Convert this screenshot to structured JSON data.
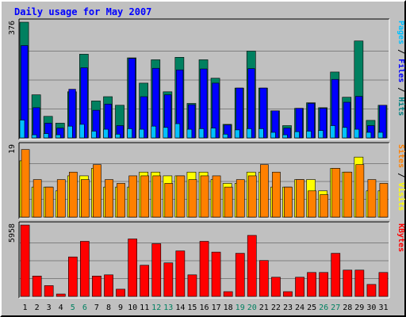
{
  "title": "Daily usage for May 2007",
  "chart_data": [
    {
      "type": "bar",
      "name": "hits-files-pages",
      "label_parts": [
        {
          "text": "Pages",
          "color": "#00c0ff"
        },
        {
          "text": " / ",
          "color": "#000000"
        },
        {
          "text": "Files",
          "color": "#0000ff"
        },
        {
          "text": " / ",
          "color": "#000000"
        },
        {
          "text": "Hits",
          "color": "#008080"
        }
      ],
      "max_label": "376",
      "ymax": 376,
      "categories": [
        1,
        2,
        3,
        4,
        5,
        6,
        7,
        8,
        9,
        10,
        11,
        12,
        13,
        14,
        15,
        16,
        17,
        18,
        19,
        20,
        21,
        22,
        23,
        24,
        25,
        26,
        27,
        28,
        29,
        30,
        31
      ],
      "series": [
        {
          "name": "Hits",
          "color": "#008060",
          "values": [
            376,
            140,
            70,
            48,
            150,
            272,
            120,
            134,
            106,
            260,
            178,
            254,
            150,
            262,
            112,
            254,
            194,
            44,
            162,
            282,
            162,
            88,
            40,
            96,
            114,
            98,
            214,
            132,
            315,
            57,
            106
          ]
        },
        {
          "name": "Files",
          "color": "#0000ff",
          "values": [
            300,
            98,
            48,
            32,
            158,
            228,
            90,
            110,
            40,
            258,
            134,
            226,
            140,
            221,
            108,
            224,
            178,
            42,
            162,
            225,
            162,
            88,
            32,
            96,
            112,
            96,
            190,
            116,
            135,
            40,
            106
          ]
        },
        {
          "name": "Pages",
          "color": "#00c0ff",
          "values": [
            58,
            10,
            14,
            10,
            38,
            44,
            22,
            28,
            12,
            30,
            28,
            38,
            34,
            46,
            28,
            30,
            32,
            12,
            26,
            30,
            30,
            18,
            10,
            20,
            22,
            24,
            40,
            34,
            28,
            18,
            18
          ]
        }
      ]
    },
    {
      "type": "bar",
      "name": "visits-sites",
      "label_parts": [
        {
          "text": "Sites",
          "color": "#ff8000"
        },
        {
          "text": " / ",
          "color": "#000000"
        },
        {
          "text": "Visits",
          "color": "#ffff00"
        }
      ],
      "max_label": "19",
      "ymax": 19,
      "categories": [
        1,
        2,
        3,
        4,
        5,
        6,
        7,
        8,
        9,
        10,
        11,
        12,
        13,
        14,
        15,
        16,
        17,
        18,
        19,
        20,
        21,
        22,
        23,
        24,
        25,
        26,
        27,
        28,
        29,
        30,
        31
      ],
      "series": [
        {
          "name": "Visits",
          "color": "#ffff00",
          "values": [
            15,
            8,
            8,
            7,
            11,
            11,
            13,
            8,
            8,
            8,
            12,
            12,
            11,
            11,
            12,
            12,
            10,
            9,
            9,
            12,
            12,
            8,
            8,
            10,
            10,
            7,
            13,
            12,
            16,
            7,
            7
          ]
        },
        {
          "name": "Sites",
          "color": "#ff8000",
          "values": [
            18,
            10,
            8,
            10,
            12,
            10,
            14,
            10,
            9,
            11,
            11,
            11,
            9,
            11,
            10,
            11,
            11,
            8,
            10,
            11,
            14,
            12,
            8,
            10,
            7,
            6,
            13,
            12,
            14,
            10,
            9
          ]
        }
      ]
    },
    {
      "type": "bar",
      "name": "kbytes",
      "label_parts": [
        {
          "text": "KBytes",
          "color": "#ff0000"
        }
      ],
      "max_label": "5958",
      "ymax": 5958,
      "categories": [
        1,
        2,
        3,
        4,
        5,
        6,
        7,
        8,
        9,
        10,
        11,
        12,
        13,
        14,
        15,
        16,
        17,
        18,
        19,
        20,
        21,
        22,
        23,
        24,
        25,
        26,
        27,
        28,
        29,
        30,
        31
      ],
      "series": [
        {
          "name": "KBytes",
          "color": "#ff0000",
          "values": [
            5958,
            1700,
            900,
            200,
            3300,
            4600,
            1700,
            1800,
            600,
            4800,
            2600,
            4400,
            2800,
            3800,
            1800,
            4600,
            3700,
            400,
            3600,
            5100,
            3000,
            1600,
            400,
            1600,
            2000,
            2000,
            3600,
            2200,
            2200,
            1000,
            2000
          ]
        }
      ]
    }
  ],
  "x_labels": [
    "1",
    "2",
    "3",
    "4",
    "5",
    "6",
    "7",
    "8",
    "9",
    "10",
    "11",
    "12",
    "13",
    "14",
    "15",
    "16",
    "17",
    "18",
    "19",
    "20",
    "21",
    "22",
    "23",
    "24",
    "25",
    "26",
    "27",
    "28",
    "29",
    "30",
    "31"
  ],
  "weekend_days": [
    5,
    6,
    12,
    13,
    19,
    20,
    26,
    27
  ],
  "colors": {
    "weekday_label": "#000000",
    "weekend_label": "#008060"
  }
}
